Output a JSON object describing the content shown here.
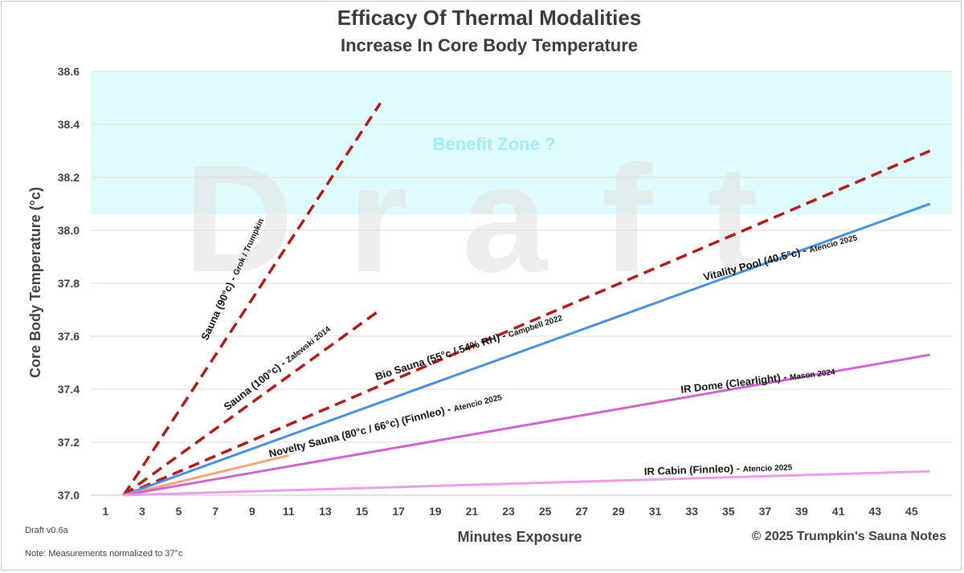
{
  "chart_data": {
    "type": "line",
    "title": "Efficacy Of Thermal Modalities",
    "subtitle": "Increase In Core Body Temperature",
    "xlabel": "Minutes Exposure",
    "ylabel": "Core Body Temperature (°c)",
    "xlim": [
      0.2,
      47.2
    ],
    "ylim": [
      37.0,
      38.6
    ],
    "xticks": [
      1,
      3,
      5,
      7,
      9,
      11,
      13,
      15,
      17,
      19,
      21,
      23,
      25,
      27,
      29,
      31,
      33,
      35,
      37,
      39,
      41,
      43,
      45
    ],
    "yticks": [
      "37.0",
      "37.2",
      "37.4",
      "37.6",
      "37.8",
      "38.0",
      "38.2",
      "38.4",
      "38.6"
    ],
    "grid": true,
    "benefit_zone": {
      "label": "Benefit Zone ?",
      "y_from": 38.06,
      "y_to": 38.6,
      "color": "#dffbfd"
    },
    "watermark": "Draft",
    "series": [
      {
        "id": "sauna90",
        "name": "Sauna (90°c)",
        "citation": "Grok / Trumpkin",
        "x": [
          2,
          16
        ],
        "y": [
          37.0,
          38.48
        ],
        "color": "#b01c1c",
        "dashed": true
      },
      {
        "id": "sauna100",
        "name": "Sauna (100°c)",
        "citation": "Zalewski 2014",
        "x": [
          2,
          16
        ],
        "y": [
          37.0,
          37.7
        ],
        "color": "#b01c1c",
        "dashed": true
      },
      {
        "id": "biosauna",
        "name": "Bio Sauna (55°c / 54% RH)",
        "citation": "Campbell 2022",
        "x": [
          2,
          46
        ],
        "y": [
          37.0,
          38.3
        ],
        "color": "#b01c1c",
        "dashed": true
      },
      {
        "id": "vitality",
        "name": "Vitality Pool (40.5°c)",
        "citation": "Atencio 2025",
        "x": [
          2,
          46
        ],
        "y": [
          37.0,
          38.1
        ],
        "color": "#4a90d9",
        "dashed": false
      },
      {
        "id": "novelty",
        "name": "Novelty Sauna (80°c / 66°c) (Finnleo)",
        "citation": "Atencio 2025",
        "x": [
          2,
          11
        ],
        "y": [
          37.0,
          37.15
        ],
        "color": "#f4a77a",
        "dashed": false
      },
      {
        "id": "irdome",
        "name": "IR Dome (Clearlight)",
        "citation": "Mason 2024",
        "x": [
          2,
          46
        ],
        "y": [
          37.0,
          37.53
        ],
        "color": "#cc66cc",
        "dashed": false
      },
      {
        "id": "ircabin",
        "name": "IR Cabin (Finnleo)",
        "citation": "Atencio 2025",
        "x": [
          2,
          46
        ],
        "y": [
          37.0,
          37.09
        ],
        "color": "#e6a0e6",
        "dashed": false
      }
    ]
  },
  "footer": {
    "version": "Draft v0.6a",
    "note": "Note: Measurements normalized to 37°c",
    "copyright": "© 2025 Trumpkin's Sauna Notes"
  }
}
